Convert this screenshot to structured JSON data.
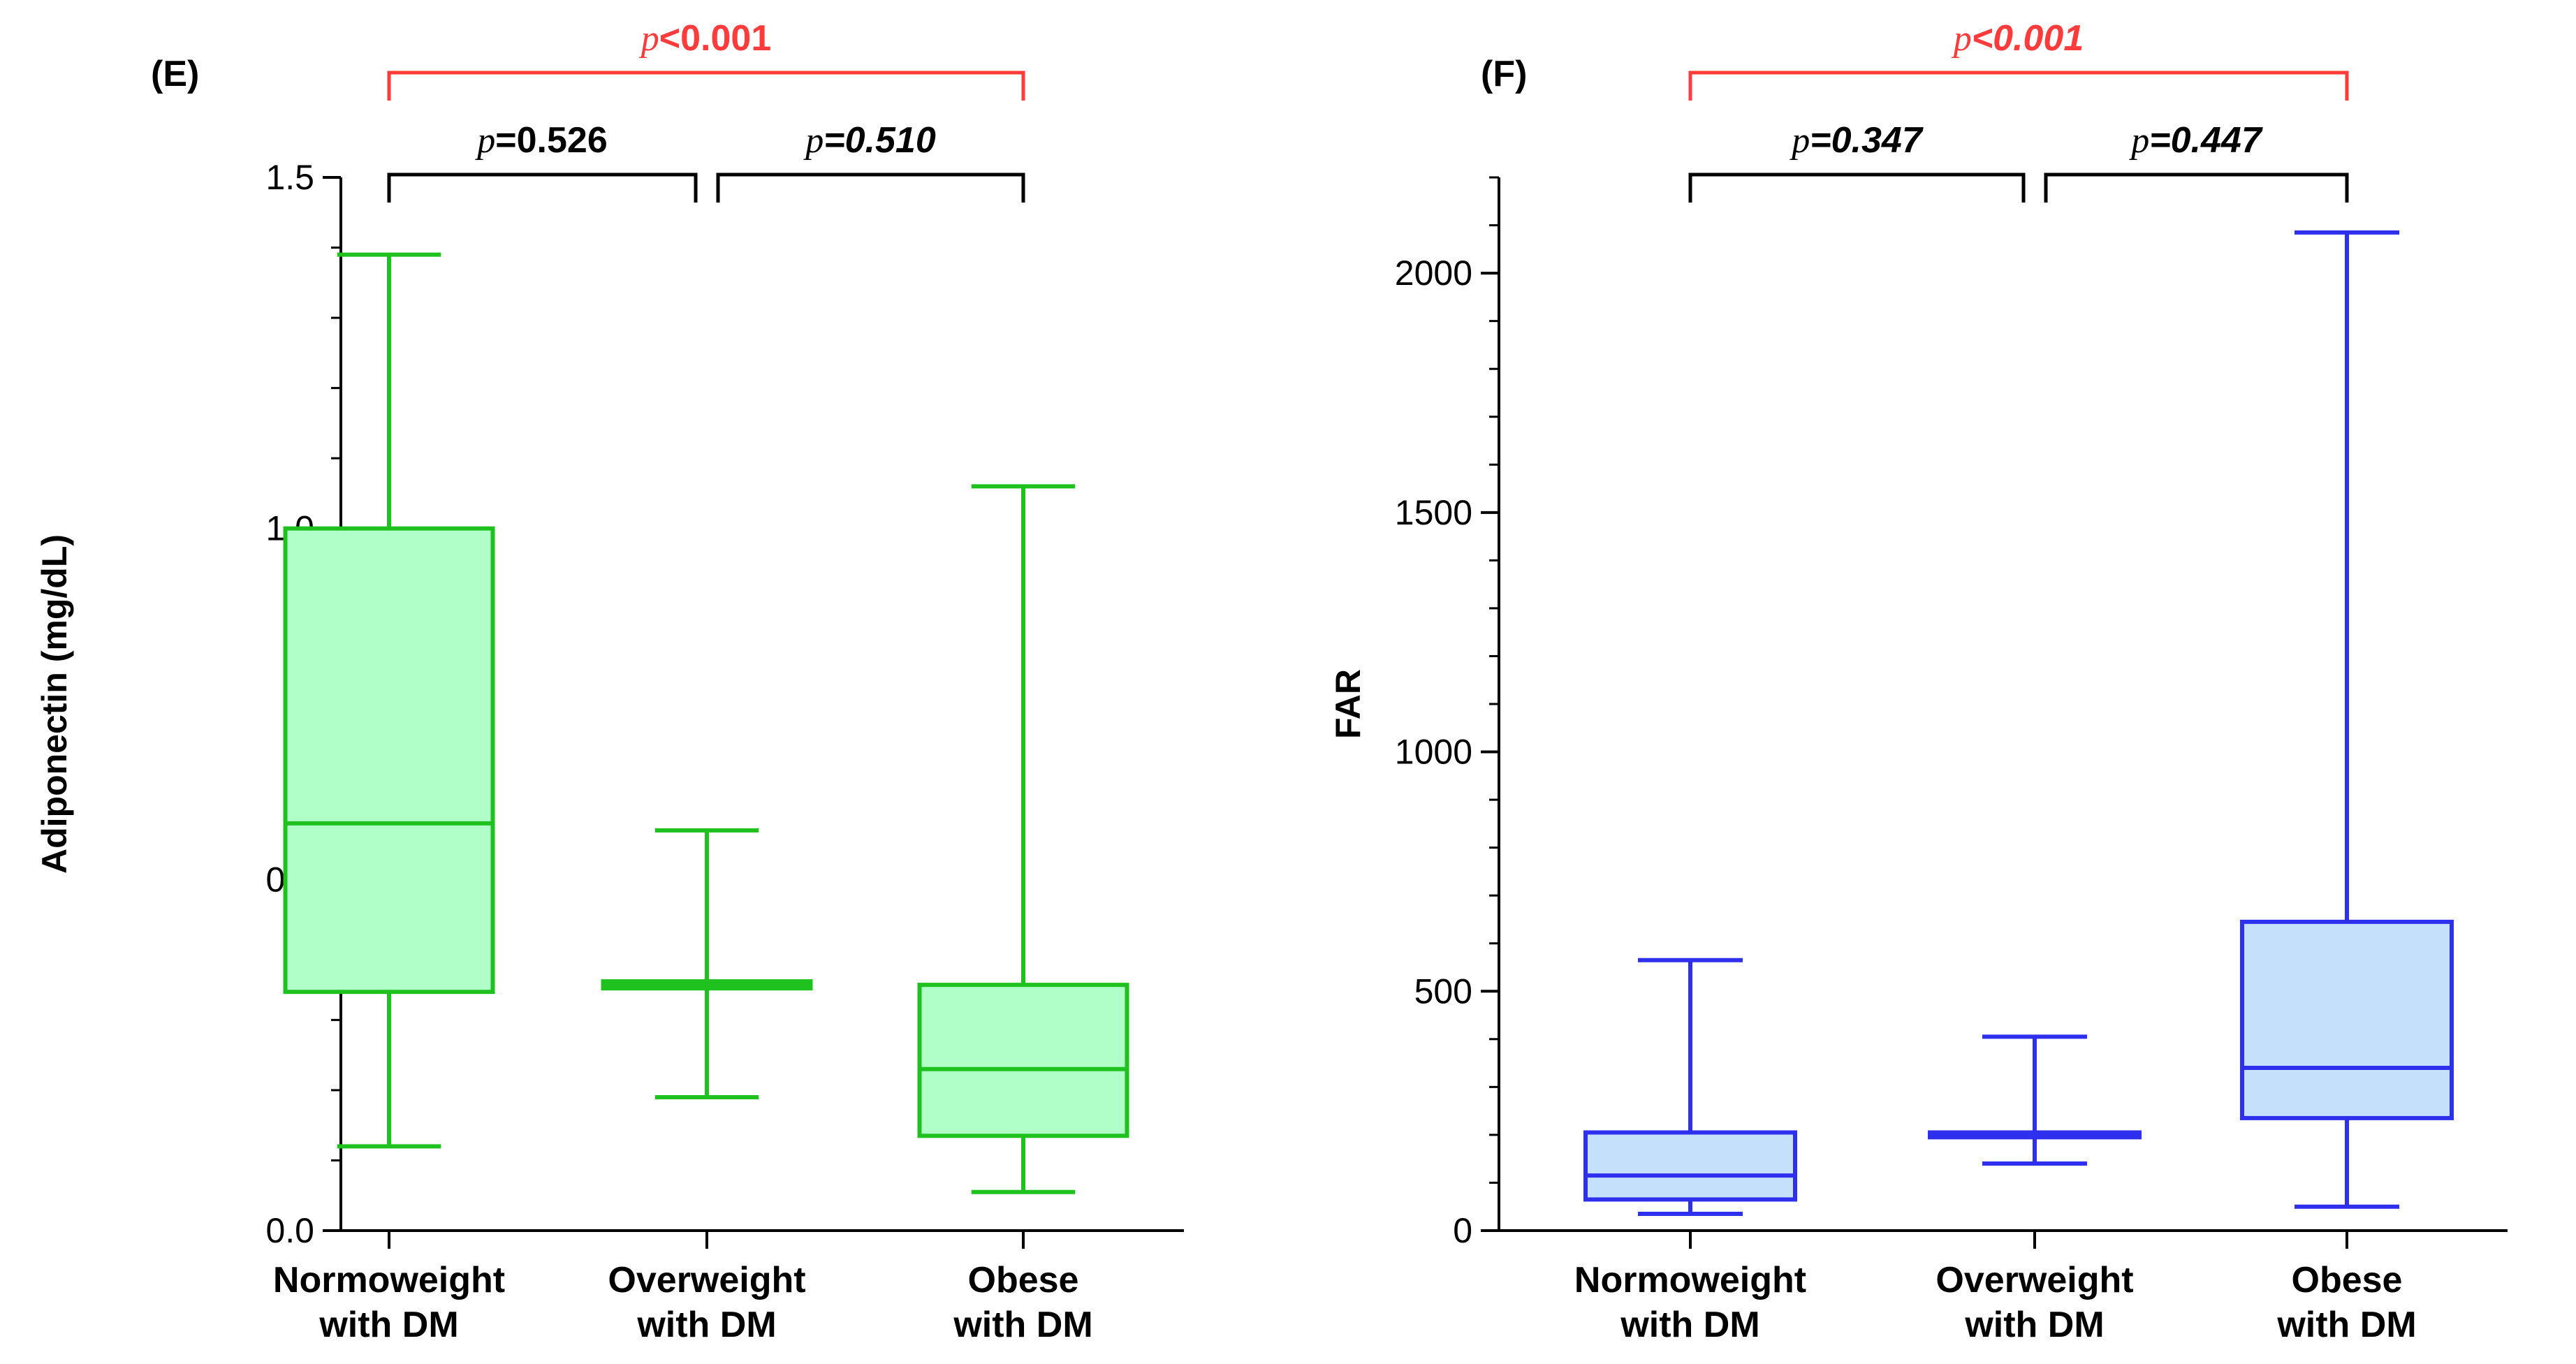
{
  "chart_data": [
    {
      "type": "box",
      "panel_label": "(E)",
      "ylabel": "Adiponectin (mg/dL)",
      "ylim": [
        0,
        1.5
      ],
      "yticks": [
        {
          "value": 0.0,
          "label": "0.0"
        },
        {
          "value": 0.5,
          "label": "0.5"
        },
        {
          "value": 1.0,
          "label": "1.0"
        },
        {
          "value": 1.5,
          "label": "1.5"
        }
      ],
      "minor_tick_step": 0.1,
      "categories": [
        {
          "line1": "Normoweight",
          "line2": "with DM"
        },
        {
          "line1": "Overweight",
          "line2": "with DM"
        },
        {
          "line1": "Obese",
          "line2": "with DM"
        }
      ],
      "boxes": [
        {
          "min": 0.12,
          "q1": 0.34,
          "median": 0.58,
          "q3": 1.0,
          "max": 1.39
        },
        {
          "min": 0.19,
          "q1": 0.345,
          "median": 0.35,
          "q3": 0.355,
          "max": 0.57
        },
        {
          "min": 0.055,
          "q1": 0.135,
          "median": 0.23,
          "q3": 0.35,
          "max": 1.06
        }
      ],
      "color": "#1fc11f",
      "fill": "#b0ffc8",
      "comparisons": [
        {
          "from": 0,
          "to": 1,
          "p_symbol": "p",
          "p_text": "=0.526",
          "italic_value": false,
          "color": "#000000"
        },
        {
          "from": 1,
          "to": 2,
          "p_symbol": "p",
          "p_text": "=0.510",
          "italic_value": true,
          "color": "#000000"
        },
        {
          "from": 0,
          "to": 2,
          "p_symbol": "p",
          "p_text": "<0.001",
          "italic_value": false,
          "color": "#ff3b3b"
        }
      ]
    },
    {
      "type": "box",
      "panel_label": "(F)",
      "ylabel": "FAR",
      "ylim": [
        0,
        2200
      ],
      "yticks": [
        {
          "value": 0,
          "label": "0"
        },
        {
          "value": 500,
          "label": "500"
        },
        {
          "value": 1000,
          "label": "1000"
        },
        {
          "value": 1500,
          "label": "1500"
        },
        {
          "value": 2000,
          "label": "2000"
        }
      ],
      "minor_tick_step": 100,
      "categories": [
        {
          "line1": "Normoweight",
          "line2": "with DM"
        },
        {
          "line1": "Overweight",
          "line2": "with DM"
        },
        {
          "line1": "Obese",
          "line2": "with DM"
        }
      ],
      "boxes": [
        {
          "min": 35,
          "q1": 65,
          "median": 115,
          "q3": 205,
          "max": 565
        },
        {
          "min": 140,
          "q1": 195,
          "median": 200,
          "q3": 205,
          "max": 405
        },
        {
          "min": 50,
          "q1": 235,
          "median": 340,
          "q3": 645,
          "max": 2085
        }
      ],
      "color": "#2f2fee",
      "fill": "#c4e0fa",
      "comparisons": [
        {
          "from": 0,
          "to": 1,
          "p_symbol": "p",
          "p_text": "=0.347",
          "italic_value": true,
          "color": "#000000"
        },
        {
          "from": 1,
          "to": 2,
          "p_symbol": "p",
          "p_text": "=0.447",
          "italic_value": true,
          "color": "#000000"
        },
        {
          "from": 0,
          "to": 2,
          "p_symbol": "p",
          "p_text": "<0.001",
          "italic_value": true,
          "color": "#ff3b3b"
        }
      ]
    }
  ]
}
